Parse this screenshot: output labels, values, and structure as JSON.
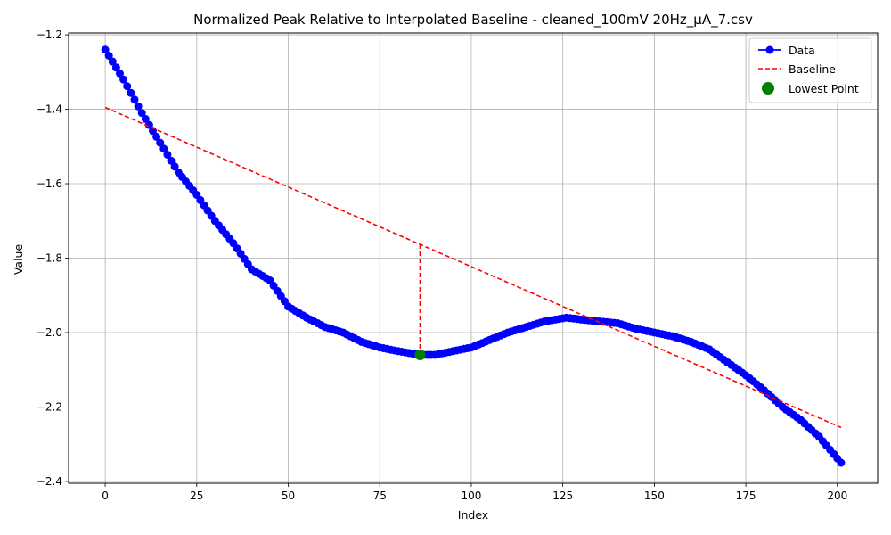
{
  "colors": {
    "data": "#0000ff",
    "baseline": "#ff0000",
    "lowest": "#008000",
    "grid": "#b0b0b0"
  },
  "chart_data": {
    "type": "line",
    "title": "Normalized Peak Relative to Interpolated Baseline - cleaned_100mV 20Hz_μA_7.csv",
    "xlabel": "Index",
    "ylabel": "Value",
    "xlim": [
      -10,
      211
    ],
    "ylim": [
      -2.405,
      -1.195
    ],
    "xticks": [
      0,
      25,
      50,
      75,
      100,
      125,
      150,
      175,
      200
    ],
    "yticks": [
      -2.4,
      -2.2,
      -2.0,
      -1.8,
      -1.6,
      -1.4,
      -1.2
    ],
    "xtick_labels": [
      "0",
      "25",
      "50",
      "75",
      "100",
      "125",
      "150",
      "175",
      "200"
    ],
    "ytick_labels": [
      "−2.4",
      "−2.2",
      "−2.0",
      "−1.8",
      "−1.6",
      "−1.4",
      "−1.2"
    ],
    "grid": true,
    "legend_position": "top-right",
    "legend": [
      "Data",
      "Baseline",
      "Lowest Point"
    ],
    "series": [
      {
        "name": "Data",
        "style": "line-with-markers",
        "keypoints": [
          [
            0,
            -1.24
          ],
          [
            5,
            -1.32
          ],
          [
            10,
            -1.41
          ],
          [
            15,
            -1.49
          ],
          [
            20,
            -1.57
          ],
          [
            25,
            -1.63
          ],
          [
            30,
            -1.7
          ],
          [
            35,
            -1.76
          ],
          [
            40,
            -1.83
          ],
          [
            45,
            -1.86
          ],
          [
            50,
            -1.93
          ],
          [
            55,
            -1.96
          ],
          [
            60,
            -1.985
          ],
          [
            65,
            -2.0
          ],
          [
            70,
            -2.025
          ],
          [
            75,
            -2.04
          ],
          [
            80,
            -2.05
          ],
          [
            86,
            -2.06
          ],
          [
            90,
            -2.06
          ],
          [
            95,
            -2.05
          ],
          [
            100,
            -2.04
          ],
          [
            105,
            -2.02
          ],
          [
            110,
            -2.0
          ],
          [
            115,
            -1.985
          ],
          [
            120,
            -1.97
          ],
          [
            126,
            -1.96
          ],
          [
            130,
            -1.965
          ],
          [
            135,
            -1.97
          ],
          [
            140,
            -1.975
          ],
          [
            145,
            -1.99
          ],
          [
            150,
            -2.0
          ],
          [
            155,
            -2.01
          ],
          [
            160,
            -2.025
          ],
          [
            165,
            -2.045
          ],
          [
            170,
            -2.08
          ],
          [
            175,
            -2.115
          ],
          [
            180,
            -2.155
          ],
          [
            185,
            -2.2
          ],
          [
            190,
            -2.235
          ],
          [
            195,
            -2.28
          ],
          [
            201,
            -2.35
          ]
        ],
        "n_points": 202
      },
      {
        "name": "Baseline",
        "style": "dashed",
        "points": [
          [
            0,
            -1.395
          ],
          [
            201,
            -2.255
          ]
        ]
      },
      {
        "name": "Peak marker",
        "style": "dashed",
        "points": [
          [
            86,
            -1.763
          ],
          [
            86,
            -2.06
          ]
        ]
      },
      {
        "name": "Lowest Point",
        "style": "marker",
        "points": [
          [
            86,
            -2.06
          ]
        ]
      }
    ]
  }
}
